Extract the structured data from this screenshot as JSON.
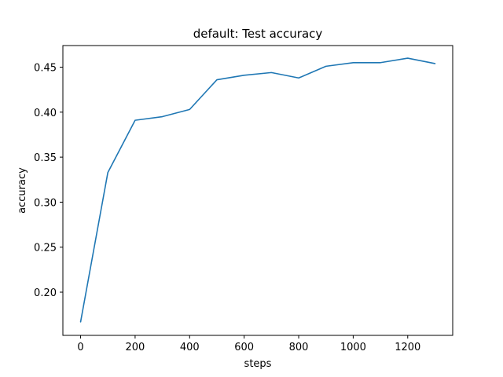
{
  "chart_data": {
    "type": "line",
    "title": "default: Test accuracy",
    "xlabel": "steps",
    "ylabel": "accuracy",
    "xlim": [
      -65,
      1365
    ],
    "ylim": [
      0.152,
      0.474
    ],
    "xticks": [
      0,
      200,
      400,
      600,
      800,
      1000,
      1200
    ],
    "xtick_labels": [
      "0",
      "200",
      "400",
      "600",
      "800",
      "1000",
      "1200"
    ],
    "yticks": [
      0.2,
      0.25,
      0.3,
      0.35,
      0.4,
      0.45
    ],
    "ytick_labels": [
      "0.20",
      "0.25",
      "0.30",
      "0.35",
      "0.40",
      "0.45"
    ],
    "grid": false,
    "series": [
      {
        "color": "#1f77b4",
        "x": [
          0,
          100,
          200,
          300,
          400,
          500,
          600,
          700,
          800,
          900,
          1000,
          1100,
          1200,
          1300
        ],
        "y": [
          0.167,
          0.333,
          0.391,
          0.395,
          0.403,
          0.436,
          0.441,
          0.444,
          0.438,
          0.451,
          0.455,
          0.455,
          0.46,
          0.454
        ]
      }
    ]
  }
}
